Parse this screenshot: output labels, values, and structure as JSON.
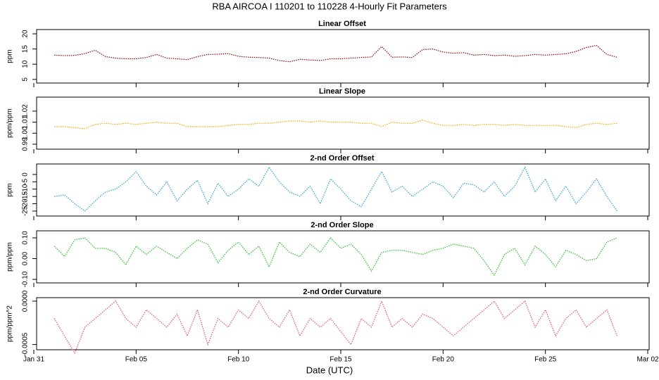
{
  "title": "RBA   AIRCOA I   110201 to 110228   4-Hourly Fit Parameters",
  "xlabel": "Date (UTC)",
  "chart_data": [
    {
      "type": "line",
      "title": "Linear Offset",
      "ylabel": "ppm",
      "color": "#8b0000",
      "x": [
        1,
        1.5,
        2,
        2.5,
        3,
        3.5,
        4,
        4.5,
        5,
        5.5,
        6,
        6.5,
        7,
        7.5,
        8,
        8.5,
        9,
        9.5,
        10,
        10.5,
        11,
        11.5,
        12,
        12.5,
        13,
        13.5,
        14,
        14.5,
        15,
        15.5,
        16,
        16.5,
        17,
        17.5,
        18,
        18.5,
        19,
        19.5,
        20,
        20.5,
        21,
        21.5,
        22,
        22.5,
        23,
        23.5,
        24,
        24.5,
        25,
        25.5,
        26,
        26.5,
        27,
        27.5,
        28,
        28.5
      ],
      "values": [
        13,
        12.8,
        12.9,
        13.5,
        14.6,
        12.5,
        12,
        11.8,
        11.8,
        12.2,
        13.2,
        12,
        11.8,
        11.5,
        12.5,
        13.2,
        13.3,
        13.5,
        12.6,
        12.3,
        12.2,
        12,
        11.2,
        10.8,
        11.6,
        11.4,
        11.2,
        11.8,
        11.8,
        12,
        12.2,
        12.4,
        15.8,
        12.3,
        12.4,
        12.2,
        14.8,
        15,
        14,
        13.6,
        13.8,
        13,
        13.2,
        12.8,
        13,
        12.6,
        12.8,
        13.2,
        13,
        13.2,
        13.4,
        14.2,
        15.5,
        16.2,
        13.2,
        12.3
      ],
      "xlim": [
        0,
        30
      ],
      "xticks": [
        0,
        5,
        10,
        15,
        20,
        25,
        30
      ],
      "ylim": [
        3.8,
        21.4
      ],
      "yticks": [
        5,
        10,
        15,
        20
      ]
    },
    {
      "type": "line",
      "title": "Linear Slope",
      "ylabel": "ppm/ppm",
      "color": "#ffa500",
      "x": [
        1,
        1.5,
        2,
        2.5,
        3,
        3.5,
        4,
        4.5,
        5,
        5.5,
        6,
        6.5,
        7,
        7.5,
        8,
        8.5,
        9,
        9.5,
        10,
        10.5,
        11,
        11.5,
        12,
        12.5,
        13,
        13.5,
        14,
        14.5,
        15,
        15.5,
        16,
        16.5,
        17,
        17.5,
        18,
        18.5,
        19,
        19.5,
        20,
        20.5,
        21,
        21.5,
        22,
        22.5,
        23,
        23.5,
        24,
        24.5,
        25,
        25.5,
        26,
        26.5,
        27,
        27.5,
        28,
        28.5
      ],
      "values": [
        1.006,
        1.006,
        1.005,
        1.004,
        1.008,
        1.009,
        1.008,
        1.009,
        1.008,
        1.009,
        1.01,
        1.009,
        1.009,
        1.006,
        1.006,
        1.006,
        1.006,
        1.007,
        1.008,
        1.008,
        1.009,
        1.009,
        1.01,
        1.011,
        1.011,
        1.01,
        1.011,
        1.01,
        1.01,
        1.01,
        1.009,
        1.009,
        1.006,
        1.01,
        1.009,
        1.009,
        1.012,
        1.009,
        1.007,
        1.007,
        1.008,
        1.007,
        1.008,
        1.008,
        1.007,
        1.008,
        1.007,
        1.007,
        1.007,
        1.007,
        1.006,
        1.005,
        1.008,
        1.009,
        1.008,
        1.009
      ],
      "xlim": [
        0,
        30
      ],
      "xticks": [
        0,
        5,
        10,
        15,
        20,
        25,
        30
      ],
      "ylim": [
        0.9855,
        1.0327
      ],
      "yticks": [
        0.99,
        {
          "value": 1,
          "label": "1.00"
        },
        1.01,
        1.02
      ]
    },
    {
      "type": "line",
      "title": "2-nd Order Offset",
      "ylabel": "ppm",
      "color": "#2a9fd6",
      "x": [
        1,
        1.5,
        2,
        2.5,
        3,
        3.5,
        4,
        4.5,
        5,
        5.5,
        6,
        6.5,
        7,
        7.5,
        8,
        8.5,
        9,
        9.5,
        10,
        10.5,
        11,
        11.5,
        12,
        12.5,
        13,
        13.5,
        14,
        14.5,
        15,
        15.5,
        16,
        16.5,
        17,
        17.5,
        18,
        18.5,
        19,
        19.5,
        20,
        20.5,
        21,
        21.5,
        22,
        22.5,
        23,
        23.5,
        24,
        24.5,
        25,
        25.5,
        26,
        26.5,
        27,
        27.5,
        28,
        28.5
      ],
      "values": [
        -15,
        -14,
        -20,
        -25,
        -18,
        -12,
        -10,
        -5,
        2,
        -8,
        -14,
        -5,
        -18,
        -10,
        -4,
        -20,
        -6,
        -15,
        -10,
        -3,
        -8,
        5,
        -5,
        -12,
        -15,
        -8,
        -20,
        -3,
        -10,
        -18,
        -22,
        -10,
        2,
        -12,
        -8,
        -15,
        -10,
        -5,
        -8,
        -16,
        -6,
        -7,
        -12,
        -5,
        -15,
        -8,
        5,
        -12,
        -3,
        -18,
        -8,
        -20,
        -12,
        -3,
        -15,
        -25
      ],
      "xlim": [
        0,
        30
      ],
      "xticks": [
        0,
        5,
        10,
        15,
        20,
        25,
        30
      ],
      "ylim": [
        -28.4,
        7.2
      ],
      "yticks": [
        -25,
        -20,
        -15,
        -10,
        -5,
        0
      ]
    },
    {
      "type": "line",
      "title": "2-nd Order Slope",
      "ylabel": "ppm/ppm",
      "color": "#22c022",
      "x": [
        1,
        1.5,
        2,
        2.5,
        3,
        3.5,
        4,
        4.5,
        5,
        5.5,
        6,
        6.5,
        7,
        7.5,
        8,
        8.5,
        9,
        9.5,
        10,
        10.5,
        11,
        11.5,
        12,
        12.5,
        13,
        13.5,
        14,
        14.5,
        15,
        15.5,
        16,
        16.5,
        17,
        17.5,
        18,
        18.5,
        19,
        19.5,
        20,
        20.5,
        21,
        21.5,
        22,
        22.5,
        23,
        23.5,
        24,
        24.5,
        25,
        25.5,
        26,
        26.5,
        27,
        27.5,
        28,
        28.5
      ],
      "values": [
        0.06,
        0.01,
        0.09,
        0.1,
        0.05,
        0.05,
        0.03,
        -0.03,
        0.06,
        0.02,
        0.06,
        0.03,
        0,
        0.05,
        0.09,
        0.07,
        -0.02,
        0.04,
        0.08,
        0.02,
        0.06,
        -0.04,
        0.08,
        0.03,
        0.01,
        0.07,
        0.03,
        0.1,
        0.05,
        0.07,
        0.02,
        -0.06,
        0.03,
        0.04,
        0.04,
        0.03,
        0.02,
        0.04,
        0.05,
        0.07,
        0.06,
        0.05,
        -0.01,
        -0.08,
        0.02,
        0.05,
        -0.03,
        0.06,
        0.02,
        -0.04,
        0.04,
        0.02,
        -0.01,
        0,
        0.08,
        0.1
      ],
      "xlim": [
        0,
        30
      ],
      "xticks": [
        0,
        5,
        10,
        15,
        20,
        25,
        30
      ],
      "ylim": [
        -0.117,
        0.134
      ],
      "yticks": [
        {
          "value": -0.1,
          "label": "-0.10"
        },
        {
          "value": 0,
          "label": "0.00"
        },
        {
          "value": 0.1,
          "label": "0.10"
        }
      ]
    },
    {
      "type": "line",
      "title": "2-nd Order Curvature",
      "ylabel": "ppm/ppm^2",
      "color": "#e0507a",
      "x": [
        1,
        1.5,
        2,
        2.5,
        3,
        3.5,
        4,
        4.5,
        5,
        5.5,
        6,
        6.5,
        7,
        7.5,
        8,
        8.5,
        9,
        9.5,
        10,
        10.5,
        11,
        11.5,
        12,
        12.5,
        13,
        13.5,
        14,
        14.5,
        15,
        15.5,
        16,
        16.5,
        17,
        17.5,
        18,
        18.5,
        19,
        19.5,
        20,
        20.5,
        21,
        21.5,
        22,
        22.5,
        23,
        23.5,
        24,
        24.5,
        25,
        25.5,
        26,
        26.5,
        27,
        27.5,
        28,
        28.5
      ],
      "values": [
        -0.0002,
        -0.0004,
        -0.0006,
        -0.0003,
        -0.0002,
        -0.0001,
        0,
        -0.0002,
        -0.0003,
        -0.0001,
        -0.0002,
        -0.0003,
        -0.00015,
        -0.0004,
        -0.0001,
        -0.0005,
        -0.0002,
        -0.0003,
        -0.0001,
        -0.0002,
        0,
        -0.0002,
        -0.0003,
        -0.0001,
        -0.0004,
        -0.0002,
        -0.0003,
        -0.0002,
        -0.00035,
        -0.0005,
        -0.0002,
        -0.0003,
        0,
        -0.0003,
        -0.0002,
        -0.0003,
        -0.00015,
        -0.0002,
        -0.0003,
        -0.0004,
        -0.0003,
        -0.0002,
        -0.0001,
        0,
        -0.0002,
        -0.0001,
        0,
        -0.0003,
        -0.0001,
        -0.0004,
        -0.0002,
        -0.0001,
        -0.0003,
        -0.0002,
        -0.0001,
        -0.0004
      ],
      "xlim": [
        0,
        30
      ],
      "xticks": [
        {
          "value": 0,
          "label": "Jan 31"
        },
        {
          "value": 5,
          "label": "Feb 05"
        },
        {
          "value": 10,
          "label": "Feb 10"
        },
        {
          "value": 15,
          "label": "Feb 15"
        },
        {
          "value": 20,
          "label": "Feb 20"
        },
        {
          "value": 25,
          "label": "Feb 25"
        },
        {
          "value": 30,
          "label": "Mar 02"
        }
      ],
      "ylim": [
        -0.00056,
        4e-05
      ],
      "yticks": [
        {
          "value": -0.0005,
          "label": "-0.0005"
        },
        {
          "value": 0,
          "label": "0.0000"
        }
      ]
    }
  ]
}
